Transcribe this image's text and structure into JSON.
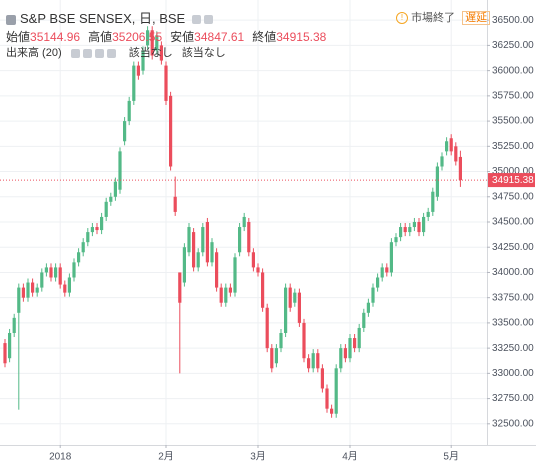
{
  "chart_data": {
    "type": "candlestick",
    "title": "S&P BSE SENSEX, 日, BSE",
    "market_status": "市場終了",
    "delay_badge": "遅延",
    "ohlc_labels": [
      "始値",
      "高値",
      "安値",
      "終値"
    ],
    "volume_label": "出来高 (20)",
    "volume_values": [
      "該当なし",
      "該当なし"
    ],
    "up_color": "#53b987",
    "down_color": "#eb4d5c",
    "grid": true,
    "categories": [
      null,
      null,
      null,
      null,
      null,
      null,
      null,
      null,
      null,
      null,
      null,
      null,
      "2018",
      null,
      null,
      null,
      null,
      null,
      null,
      null,
      null,
      null,
      null,
      null,
      null,
      null,
      null,
      null,
      null,
      null,
      null,
      null,
      null,
      null,
      null,
      "2月",
      null,
      null,
      null,
      null,
      null,
      null,
      null,
      null,
      null,
      null,
      null,
      null,
      null,
      null,
      null,
      null,
      null,
      null,
      null,
      "3月",
      null,
      null,
      null,
      null,
      null,
      null,
      null,
      null,
      null,
      null,
      null,
      null,
      null,
      null,
      null,
      null,
      null,
      null,
      null,
      "4月",
      null,
      null,
      null,
      null,
      null,
      null,
      null,
      null,
      null,
      null,
      null,
      null,
      null,
      null,
      null,
      null,
      null,
      null,
      null,
      null,
      null,
      "5月",
      null,
      null
    ],
    "open": [
      33300,
      33150,
      33400,
      33600,
      33850,
      33750,
      33900,
      33800,
      33850,
      34000,
      34050,
      33950,
      34050,
      33880,
      33800,
      33950,
      34100,
      34200,
      34300,
      34400,
      34450,
      34420,
      34550,
      34700,
      34750,
      34820,
      35300,
      35500,
      35700,
      36050,
      36000,
      36250,
      36400,
      36200,
      36250,
      36050,
      35750,
      34750,
      34000,
      33900,
      34200,
      34400,
      34050,
      34200,
      34500,
      34100,
      34200,
      33850,
      33700,
      33850,
      33800,
      34200,
      34450,
      34500,
      34200,
      34050,
      34000,
      33650,
      33250,
      33100,
      33250,
      33400,
      33850,
      33700,
      33800,
      33500,
      33150,
      33050,
      33200,
      33050,
      32850,
      32650,
      32600,
      33050,
      33250,
      33150,
      33350,
      33250,
      33450,
      33600,
      33700,
      33850,
      33950,
      34050,
      34000,
      34300,
      34350,
      34450,
      34400,
      34450,
      34500,
      34400,
      34550,
      34600,
      34750,
      35050,
      35200,
      35330,
      35250,
      35144.96
    ],
    "high": [
      33340,
      33440,
      33590,
      33890,
      33890,
      33940,
      33940,
      33890,
      34040,
      34090,
      34090,
      34090,
      34090,
      33920,
      33990,
      34140,
      34240,
      34340,
      34440,
      34490,
      34490,
      34590,
      34740,
      34790,
      34940,
      35240,
      35540,
      35740,
      36090,
      36090,
      36240,
      36440,
      36440,
      36390,
      36290,
      36090,
      35790,
      34950,
      34000,
      34290,
      34490,
      34440,
      34240,
      34490,
      34540,
      34340,
      34240,
      33890,
      33890,
      33890,
      34190,
      34490,
      34590,
      34540,
      34240,
      34090,
      34040,
      33690,
      33290,
      33290,
      33440,
      33890,
      33890,
      33840,
      33840,
      33540,
      33190,
      33240,
      33240,
      33090,
      32890,
      32690,
      33090,
      33290,
      33290,
      33390,
      33390,
      33490,
      33640,
      33740,
      33890,
      33990,
      34090,
      34090,
      34340,
      34390,
      34490,
      34490,
      34490,
      34540,
      34540,
      34590,
      34640,
      34840,
      35090,
      35190,
      35340,
      35370,
      35290,
      35206.55
    ],
    "low": [
      33060,
      33110,
      33360,
      32640,
      33710,
      33710,
      33760,
      33760,
      33810,
      33960,
      33910,
      33910,
      33840,
      33760,
      33760,
      33910,
      34060,
      34160,
      34260,
      34360,
      34380,
      34380,
      34510,
      34660,
      34710,
      34780,
      35260,
      35460,
      35660,
      35910,
      35960,
      36210,
      36110,
      36160,
      36060,
      35660,
      35010,
      34560,
      33000,
      33860,
      34160,
      34010,
      34010,
      34160,
      34060,
      34060,
      33810,
      33660,
      33660,
      33760,
      33760,
      34160,
      34410,
      34160,
      34010,
      33960,
      33610,
      33210,
      33010,
      33060,
      33210,
      33360,
      33610,
      33660,
      33460,
      33110,
      33010,
      33010,
      33010,
      32810,
      32610,
      32560,
      32560,
      33010,
      33110,
      33110,
      33210,
      33210,
      33410,
      33560,
      33660,
      33810,
      33910,
      33960,
      33960,
      34260,
      34310,
      34360,
      34360,
      34410,
      34360,
      34360,
      34510,
      34560,
      34710,
      35010,
      35160,
      35160,
      35060,
      34847.61
    ],
    "close": [
      33100,
      33400,
      33550,
      33850,
      33750,
      33900,
      33800,
      33850,
      34000,
      34050,
      33950,
      34050,
      33880,
      33800,
      33950,
      34100,
      34200,
      34300,
      34400,
      34450,
      34420,
      34550,
      34700,
      34750,
      34900,
      35200,
      35500,
      35700,
      36050,
      35950,
      36200,
      36400,
      36150,
      36350,
      36100,
      35700,
      35050,
      34600,
      33700,
      34250,
      34450,
      34050,
      34200,
      34450,
      34100,
      34300,
      33850,
      33700,
      33850,
      33800,
      34150,
      34450,
      34550,
      34200,
      34050,
      34000,
      33650,
      33250,
      33050,
      33250,
      33400,
      33850,
      33650,
      33800,
      33500,
      33150,
      33050,
      33200,
      33050,
      32850,
      32650,
      32600,
      33050,
      33250,
      33150,
      33350,
      33250,
      33450,
      33600,
      33700,
      33850,
      33950,
      34050,
      34000,
      34300,
      34350,
      34450,
      34400,
      34450,
      34500,
      34400,
      34550,
      34600,
      34800,
      35050,
      35150,
      35300,
      35200,
      35100,
      34915.38
    ],
    "ylim": [
      32290,
      36700
    ],
    "yticks": [
      {
        "value": 32500,
        "label": "32500.00"
      },
      {
        "value": 32750,
        "label": "32750.00"
      },
      {
        "value": 33000,
        "label": "33000.00"
      },
      {
        "value": 33250,
        "label": "33250.00"
      },
      {
        "value": 33500,
        "label": "33500.00"
      },
      {
        "value": 33750,
        "label": "33750.00"
      },
      {
        "value": 34000,
        "label": "34000.00"
      },
      {
        "value": 34250,
        "label": "34250.00"
      },
      {
        "value": 34500,
        "label": "34500.00"
      },
      {
        "value": 34750,
        "label": "34750.00"
      },
      {
        "value": 35000,
        "label": "35000.00"
      },
      {
        "value": 35250,
        "label": "35250.00"
      },
      {
        "value": 35500,
        "label": "35500.00"
      },
      {
        "value": 35750,
        "label": "35750.00"
      },
      {
        "value": 36000,
        "label": "36000.00"
      },
      {
        "value": 36250,
        "label": "36250.00"
      },
      {
        "value": 36500,
        "label": "36500.00"
      }
    ]
  }
}
